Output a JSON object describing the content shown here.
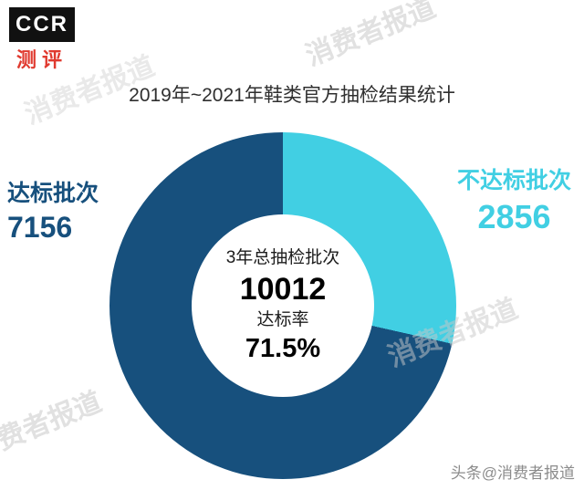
{
  "logo": {
    "main": "CCR",
    "sub": "测评"
  },
  "title": "2019年~2021年鞋类官方抽检结果统计",
  "chart_data": {
    "type": "pie",
    "donut": true,
    "title": "2019年~2021年鞋类官方抽检结果统计",
    "start_angle_deg": 0,
    "clockwise": true,
    "slices": [
      {
        "label": "不达标批次",
        "value": 2856,
        "color": "#41cfe3"
      },
      {
        "label": "达标批次",
        "value": 7156,
        "color": "#17507d"
      }
    ],
    "total": 10012,
    "center_text": {
      "total_label": "3年总抽检批次",
      "total_value": "10012",
      "rate_label": "达标率",
      "rate_value": "71.5%"
    },
    "legend_position": "sides"
  },
  "callouts": {
    "qualified": {
      "title": "达标批次",
      "value": "7156"
    },
    "unqualified": {
      "title": "不达标批次",
      "value": "2856"
    }
  },
  "watermark_text": "消费者报道",
  "footer": {
    "credit": "头条@消费者报道"
  },
  "colors": {
    "primary": "#17507d",
    "accent": "#41cfe3",
    "title_text": "#2f2f2f",
    "footer_text": "#8c8c8c",
    "watermark": "#c9c9c9",
    "logo_red": "#e03a2f",
    "logo_black": "#111111"
  }
}
